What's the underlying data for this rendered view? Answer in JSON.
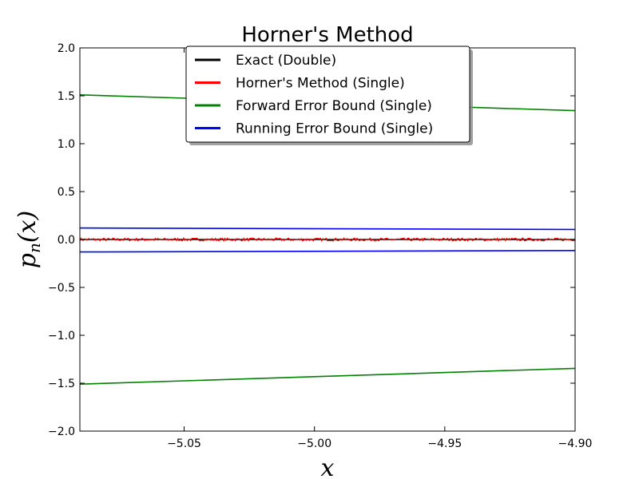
{
  "chart_data": {
    "type": "line",
    "title": "Horner's Method",
    "xlabel": "x",
    "ylabel_main": "p",
    "ylabel_sub": "n",
    "ylabel_rest": "(x)",
    "xlim": [
      -5.09,
      -4.9
    ],
    "ylim": [
      -2.0,
      2.0
    ],
    "xticks": [
      -5.05,
      -5.0,
      -4.95,
      -4.9
    ],
    "xtick_labels": [
      "−5.05",
      "−5.00",
      "−4.95",
      "−4.90"
    ],
    "yticks": [
      -2.0,
      -1.5,
      -1.0,
      -0.5,
      0.0,
      0.5,
      1.0,
      1.5,
      2.0
    ],
    "ytick_labels": [
      "−2.0",
      "−1.5",
      "−1.0",
      "−0.5",
      "0.0",
      "0.5",
      "1.0",
      "1.5",
      "2.0"
    ],
    "grid": false,
    "legend_position": "top-center",
    "series": [
      {
        "name": "Exact (Double)",
        "color": "#000000",
        "segments": [
          {
            "x": [
              -5.09,
              -4.9
            ],
            "y": [
              0.0,
              0.0
            ]
          }
        ]
      },
      {
        "name": "Horner's Method (Single)",
        "color": "#ff0000",
        "noisy": true,
        "noise_amplitude": 0.015,
        "segments": [
          {
            "x": [
              -5.09,
              -4.9
            ],
            "y": [
              0.0,
              0.0
            ]
          }
        ]
      },
      {
        "name": "Forward Error Bound (Single)",
        "color": "#008000",
        "segments": [
          {
            "x": [
              -5.09,
              -4.9
            ],
            "y": [
              1.51,
              1.345
            ]
          },
          {
            "x": [
              -5.09,
              -4.9
            ],
            "y": [
              -1.51,
              -1.345
            ]
          }
        ]
      },
      {
        "name": "Running Error Bound (Single)",
        "color": "#0000ff",
        "segments": [
          {
            "x": [
              -5.09,
              -4.9
            ],
            "y": [
              0.12,
              0.105
            ]
          },
          {
            "x": [
              -5.09,
              -4.9
            ],
            "y": [
              -0.13,
              -0.115
            ]
          }
        ]
      }
    ]
  }
}
